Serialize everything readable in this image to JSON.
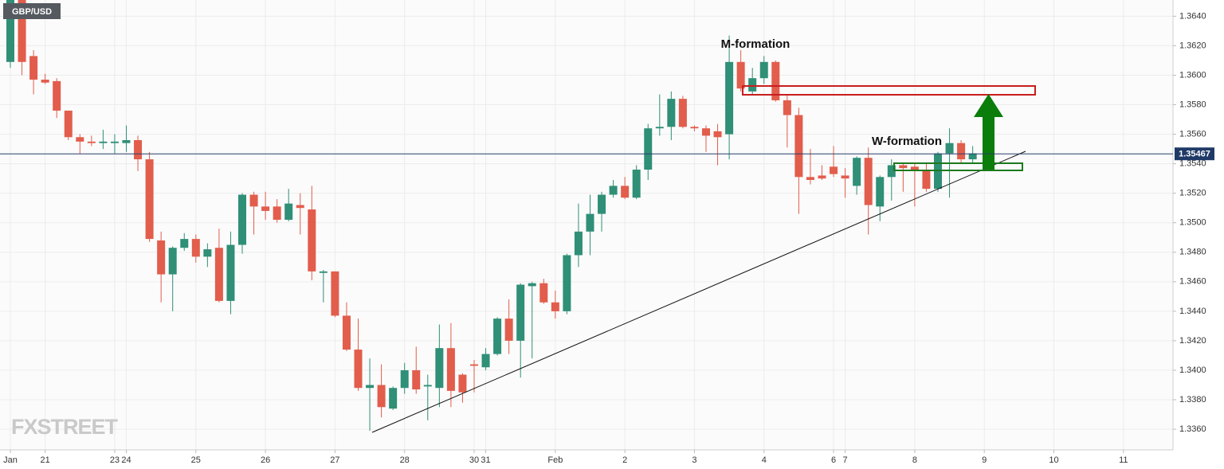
{
  "chart_data": {
    "type": "candlestick",
    "title": "GBP/USD",
    "annotations": [
      "M-formation",
      "W-formation"
    ],
    "watermark": "FXSTREET",
    "last_price": 1.35467,
    "up_color": "#2f8f77",
    "down_color": "#e25d4c",
    "grid": true,
    "ylim": [
      1.3346,
      1.3651
    ],
    "yticks": [
      {
        "value": 1.336,
        "label": "1.3360"
      },
      {
        "value": 1.338,
        "label": "1.3380"
      },
      {
        "value": 1.34,
        "label": "1.3400"
      },
      {
        "value": 1.342,
        "label": "1.3420"
      },
      {
        "value": 1.344,
        "label": "1.3440"
      },
      {
        "value": 1.346,
        "label": "1.3460"
      },
      {
        "value": 1.348,
        "label": "1.3480"
      },
      {
        "value": 1.35,
        "label": "1.3500"
      },
      {
        "value": 1.352,
        "label": "1.3520"
      },
      {
        "value": 1.354,
        "label": "1.3540"
      },
      {
        "value": 1.356,
        "label": "1.3560"
      },
      {
        "value": 1.358,
        "label": "1.3580"
      },
      {
        "value": 1.36,
        "label": "1.3600"
      },
      {
        "value": 1.362,
        "label": "1.3620"
      },
      {
        "value": 1.364,
        "label": "1.3640"
      }
    ],
    "categories": [
      "Jan",
      null,
      null,
      "21",
      null,
      null,
      null,
      null,
      null,
      "23",
      "24",
      null,
      null,
      null,
      null,
      null,
      "25",
      null,
      null,
      null,
      null,
      null,
      "26",
      null,
      null,
      null,
      null,
      null,
      "27",
      null,
      null,
      null,
      null,
      null,
      "28",
      null,
      null,
      null,
      null,
      null,
      "30",
      "31",
      null,
      null,
      null,
      null,
      null,
      "Feb",
      null,
      null,
      null,
      null,
      null,
      "2",
      null,
      null,
      null,
      null,
      null,
      "3",
      null,
      null,
      null,
      null,
      null,
      "4",
      null,
      null,
      null,
      null,
      null,
      "6",
      "7",
      null,
      null,
      null,
      null,
      null,
      "8",
      null,
      null,
      null,
      null,
      null,
      "9",
      null,
      null,
      null,
      null,
      null,
      "10",
      null,
      null,
      null,
      null,
      null,
      "11",
      null,
      null,
      null,
      null
    ],
    "open": [
      1.3609,
      1.3652,
      1.3613,
      1.3597,
      1.3596,
      1.3576,
      1.3558,
      1.3555,
      1.3554,
      1.3554,
      1.3554,
      1.3556,
      1.3543,
      1.3488,
      1.3465,
      1.3483,
      1.3489,
      1.3477,
      1.3483,
      1.3447,
      1.3485,
      1.3519,
      1.3511,
      1.3511,
      1.3502,
      1.3512,
      1.3509,
      1.3466,
      1.3467,
      1.3437,
      1.3414,
      1.3388,
      1.339,
      1.3374,
      1.3388,
      1.34,
      1.3389,
      1.3388,
      1.3415,
      1.3397,
      1.3404,
      1.3402,
      1.3411,
      1.3435,
      1.342,
      1.3457,
      1.3459,
      1.3446,
      1.344,
      1.3478,
      1.3494,
      1.3506,
      1.3519,
      1.3525,
      1.3517,
      1.3536,
      1.3564,
      1.3565,
      1.3584,
      1.3565,
      1.3564,
      1.3562,
      1.356,
      1.3609,
      1.3589,
      1.3598,
      1.3609,
      1.3583,
      1.3573,
      1.3531,
      1.3532,
      1.3538,
      1.3532,
      1.3525,
      1.3544,
      1.3511,
      1.3531,
      1.3539,
      1.3538,
      1.3536,
      1.3523,
      1.3547,
      1.3554,
      1.3543,
      null,
      null,
      null,
      null,
      null,
      null,
      null,
      null,
      null,
      null,
      null,
      null,
      null,
      null,
      null,
      null,
      null
    ],
    "high": [
      1.366,
      1.366,
      1.3617,
      1.3601,
      1.3598,
      1.3576,
      1.356,
      1.3559,
      1.3563,
      1.356,
      1.3566,
      1.3559,
      1.3548,
      1.3494,
      1.3484,
      1.3493,
      1.3492,
      1.3486,
      1.3496,
      1.3494,
      1.352,
      1.3521,
      1.3521,
      1.3516,
      1.3523,
      1.352,
      1.3525,
      1.3468,
      1.3467,
      1.3446,
      1.3435,
      1.3408,
      1.3404,
      1.3389,
      1.3405,
      1.3416,
      1.3397,
      1.3431,
      1.3432,
      1.3398,
      1.3407,
      1.3415,
      1.3436,
      1.3448,
      1.3459,
      1.346,
      1.3462,
      1.3454,
      1.3479,
      1.3513,
      1.3519,
      1.3521,
      1.3529,
      1.3531,
      1.3539,
      1.3567,
      1.3587,
      1.3589,
      1.3586,
      1.3566,
      1.3566,
      1.3567,
      1.3627,
      1.3617,
      1.3605,
      1.3613,
      1.361,
      1.3587,
      1.3578,
      1.355,
      1.3539,
      1.3552,
      1.3537,
      1.3545,
      1.3551,
      1.3532,
      1.3543,
      1.354,
      1.354,
      1.3541,
      1.3548,
      1.3564,
      1.3556,
      1.3552,
      null,
      null,
      null,
      null,
      null,
      null,
      null,
      null,
      null,
      null,
      null,
      null,
      null,
      null,
      null,
      null,
      null
    ],
    "low": [
      1.3605,
      1.36,
      1.3587,
      1.3594,
      1.3571,
      1.3556,
      1.3547,
      1.3552,
      1.355,
      1.3547,
      1.3548,
      1.3535,
      1.3487,
      1.3446,
      1.344,
      1.3481,
      1.3473,
      1.347,
      1.3446,
      1.3438,
      1.3479,
      1.3492,
      1.3502,
      1.35,
      1.3501,
      1.3492,
      1.3461,
      1.3446,
      1.3436,
      1.3413,
      1.3386,
      1.3359,
      1.3368,
      1.3373,
      1.3384,
      1.3384,
      1.3366,
      1.3375,
      1.3375,
      1.3378,
      1.3385,
      1.34,
      1.341,
      1.3411,
      1.3395,
      1.3408,
      1.3445,
      1.3435,
      1.3438,
      1.347,
      1.3478,
      1.3494,
      1.3517,
      1.3516,
      1.3516,
      1.3529,
      1.3559,
      1.3556,
      1.3564,
      1.3562,
      1.3548,
      1.3539,
      1.3543,
      1.3589,
      1.3587,
      1.3594,
      1.3582,
      1.3551,
      1.3506,
      1.3526,
      1.3529,
      1.3531,
      1.3517,
      1.3519,
      1.3492,
      1.3501,
      1.3515,
      1.3521,
      1.3511,
      1.3521,
      1.3521,
      1.3517,
      1.354,
      1.354,
      null,
      null,
      null,
      null,
      null,
      null,
      null,
      null,
      null,
      null,
      null,
      null,
      null,
      null,
      null,
      null,
      null
    ],
    "close": [
      1.3652,
      1.3609,
      1.3597,
      1.3595,
      1.3576,
      1.3558,
      1.3555,
      1.3554,
      1.3555,
      1.3555,
      1.3556,
      1.3543,
      1.3489,
      1.3465,
      1.3483,
      1.3489,
      1.3477,
      1.3482,
      1.3447,
      1.3485,
      1.3519,
      1.3511,
      1.3508,
      1.3502,
      1.3513,
      1.351,
      1.3467,
      1.3467,
      1.3437,
      1.3414,
      1.3388,
      1.339,
      1.3375,
      1.3388,
      1.34,
      1.3387,
      1.339,
      1.3415,
      1.3386,
      1.3385,
      1.3403,
      1.3411,
      1.3435,
      1.342,
      1.3458,
      1.3459,
      1.3446,
      1.344,
      1.3478,
      1.3494,
      1.3506,
      1.3519,
      1.3525,
      1.3517,
      1.3536,
      1.3564,
      1.3565,
      1.3584,
      1.3565,
      1.3564,
      1.3559,
      1.3558,
      1.3609,
      1.3591,
      1.3598,
      1.3609,
      1.3583,
      1.3573,
      1.3531,
      1.3529,
      1.353,
      1.3533,
      1.353,
      1.3544,
      1.3512,
      1.3531,
      1.3539,
      1.3537,
      1.3536,
      1.3523,
      1.3547,
      1.3554,
      1.3543,
      1.3547,
      null,
      null,
      null,
      null,
      null,
      null,
      null,
      null,
      null,
      null,
      null,
      null,
      null,
      null,
      null,
      null,
      null
    ]
  }
}
